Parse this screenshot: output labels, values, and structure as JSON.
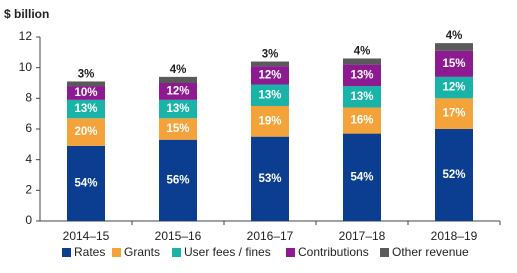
{
  "chart_data": {
    "type": "stacked_bar",
    "y_axis_label": "$ billion",
    "categories": [
      "2014–15",
      "2015–16",
      "2016–17",
      "2017–18",
      "2018–19"
    ],
    "series": [
      {
        "name": "Rates",
        "color": "#0b3d91",
        "values": [
          4.9,
          5.3,
          5.5,
          5.7,
          6.0
        ],
        "value_labels": [
          "54%",
          "56%",
          "53%",
          "54%",
          "52%"
        ]
      },
      {
        "name": "Grants",
        "color": "#f4a23a",
        "values": [
          1.8,
          1.4,
          2.0,
          1.7,
          2.0
        ],
        "value_labels": [
          "20%",
          "15%",
          "19%",
          "16%",
          "17%"
        ]
      },
      {
        "name": "User fees / fines",
        "color": "#1ab3a8",
        "values": [
          1.2,
          1.2,
          1.4,
          1.4,
          1.4
        ],
        "value_labels": [
          "13%",
          "13%",
          "13%",
          "13%",
          "12%"
        ]
      },
      {
        "name": "Contributions",
        "color": "#8e1a91",
        "values": [
          0.9,
          1.1,
          1.2,
          1.4,
          1.7
        ],
        "value_labels": [
          "10%",
          "12%",
          "12%",
          "13%",
          "15%"
        ]
      },
      {
        "name": "Other revenue",
        "color": "#5a5a5a",
        "values": [
          0.3,
          0.4,
          0.3,
          0.4,
          0.5
        ],
        "value_labels": [
          "3%",
          "4%",
          "3%",
          "4%",
          "4%"
        ]
      }
    ],
    "ylim": [
      0,
      12
    ],
    "yticks": [
      0,
      2,
      4,
      6,
      8,
      10,
      12
    ],
    "grid": false
  }
}
